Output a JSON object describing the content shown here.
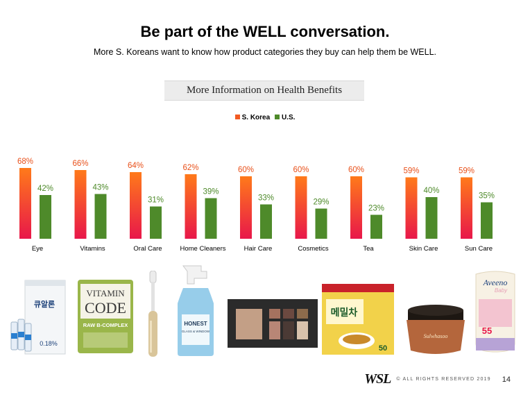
{
  "slide": {
    "title": "Be part of the WELL conversation.",
    "subtitle": "More S. Koreans want to know how product categories they buy can help them be WELL.",
    "section_label": "More Information on Health Benefits",
    "footer": {
      "logo": "WSL",
      "copyright": "© ALL RIGHTS RESERVED 2019",
      "page_number": "14"
    }
  },
  "colors": {
    "korea_top": "#ff7a1a",
    "korea_bottom": "#e8174a",
    "us": "#4e8a2a",
    "korea_label": "#e8501a",
    "us_label": "#4e8a2a"
  },
  "chart_data": {
    "type": "bar",
    "categories": [
      "Eye",
      "Vitamins",
      "Oral Care",
      "Home Cleaners",
      "Hair Care",
      "Cosmetics",
      "Tea",
      "Skin Care",
      "Sun Care"
    ],
    "series": [
      {
        "name": "S. Korea",
        "values": [
          68,
          66,
          64,
          62,
          60,
          60,
          60,
          59,
          59
        ],
        "labels": [
          "68%",
          "66%",
          "64%",
          "62%",
          "60%",
          "60%",
          "60%",
          "59%",
          "59%"
        ]
      },
      {
        "name": "U.S.",
        "values": [
          42,
          43,
          31,
          39,
          33,
          29,
          23,
          40,
          35
        ],
        "labels": [
          "42%",
          "43%",
          "31%",
          "39%",
          "33%",
          "29%",
          "23%",
          "40%",
          "35%"
        ]
      }
    ],
    "ylim": [
      0,
      100
    ],
    "legend_position": "top-center",
    "grid": false
  },
  "products": {
    "eye_drops": {
      "brand": "큐알론",
      "strength": "0.18%"
    },
    "vitamins": {
      "line1": "VITAMIN",
      "line2": "CODE",
      "line3": "RAW B-COMPLEX"
    },
    "cleaner": {
      "brand": "HONEST",
      "sub": "GLASS & WINDOW"
    },
    "tea": {
      "name": "메밀차",
      "count": "50"
    },
    "skin_care": {
      "brand": "Sulwhasoo"
    },
    "sun_care": {
      "brand": "Aveeno",
      "sub": "Baby",
      "spf": "55"
    }
  }
}
